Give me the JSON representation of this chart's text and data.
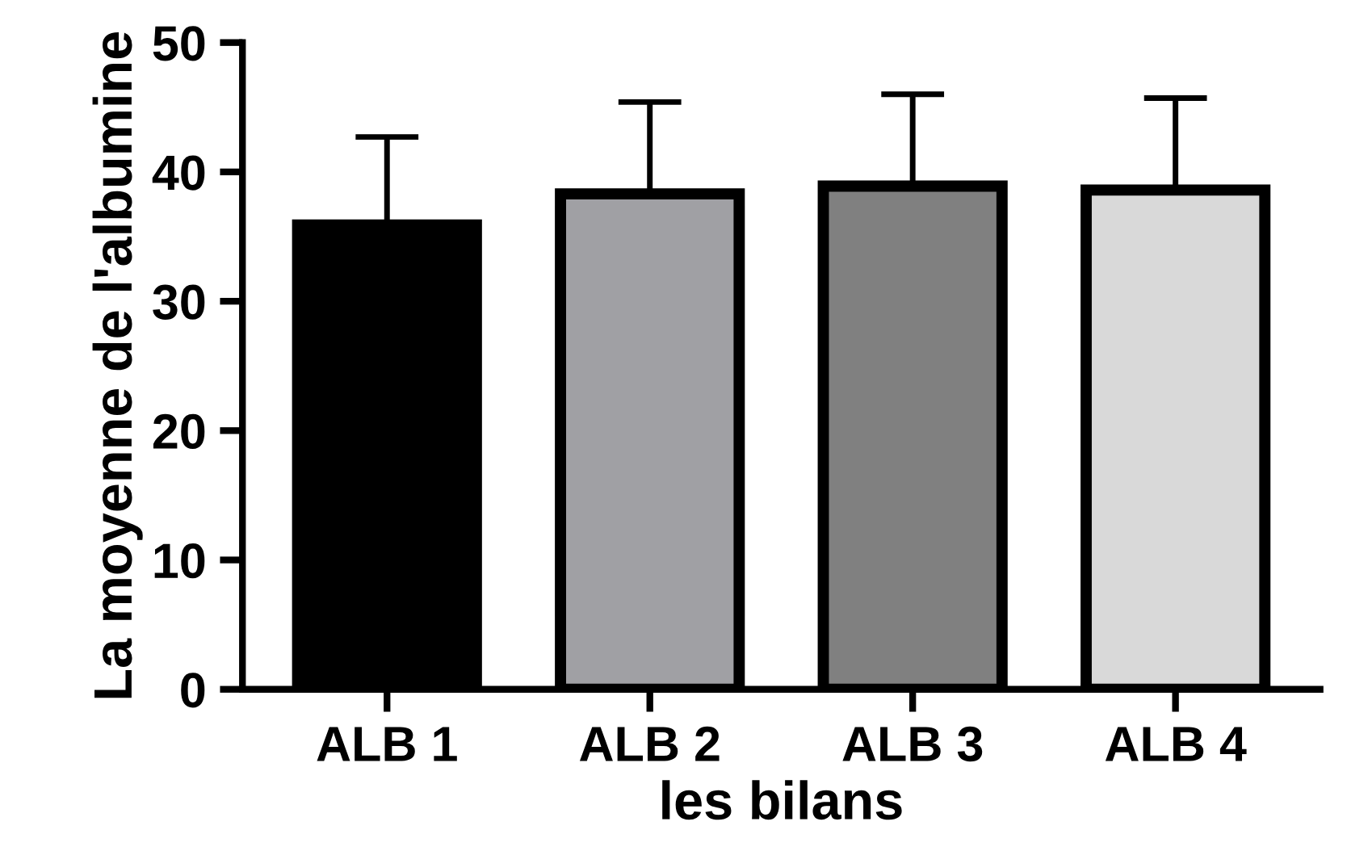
{
  "chart_data": {
    "type": "bar",
    "xlabel": "les bilans",
    "ylabel": "La moyenne de l'albumine",
    "categories": [
      "ALB 1",
      "ALB 2",
      "ALB 3",
      "ALB 4"
    ],
    "values": [
      35.9,
      38.3,
      38.9,
      38.6
    ],
    "colors": [
      "#000000",
      "#a0a0a4",
      "#808080",
      "#d9d9d9"
    ],
    "errors": [
      [
        35.9,
        42.7
      ],
      [
        38.3,
        45.4
      ],
      [
        38.9,
        46.0
      ],
      [
        38.6,
        45.7
      ]
    ],
    "ylim": [
      0,
      50
    ],
    "yticks": [
      0,
      10,
      20,
      30,
      40,
      50
    ],
    "grid": false,
    "legend": false
  }
}
